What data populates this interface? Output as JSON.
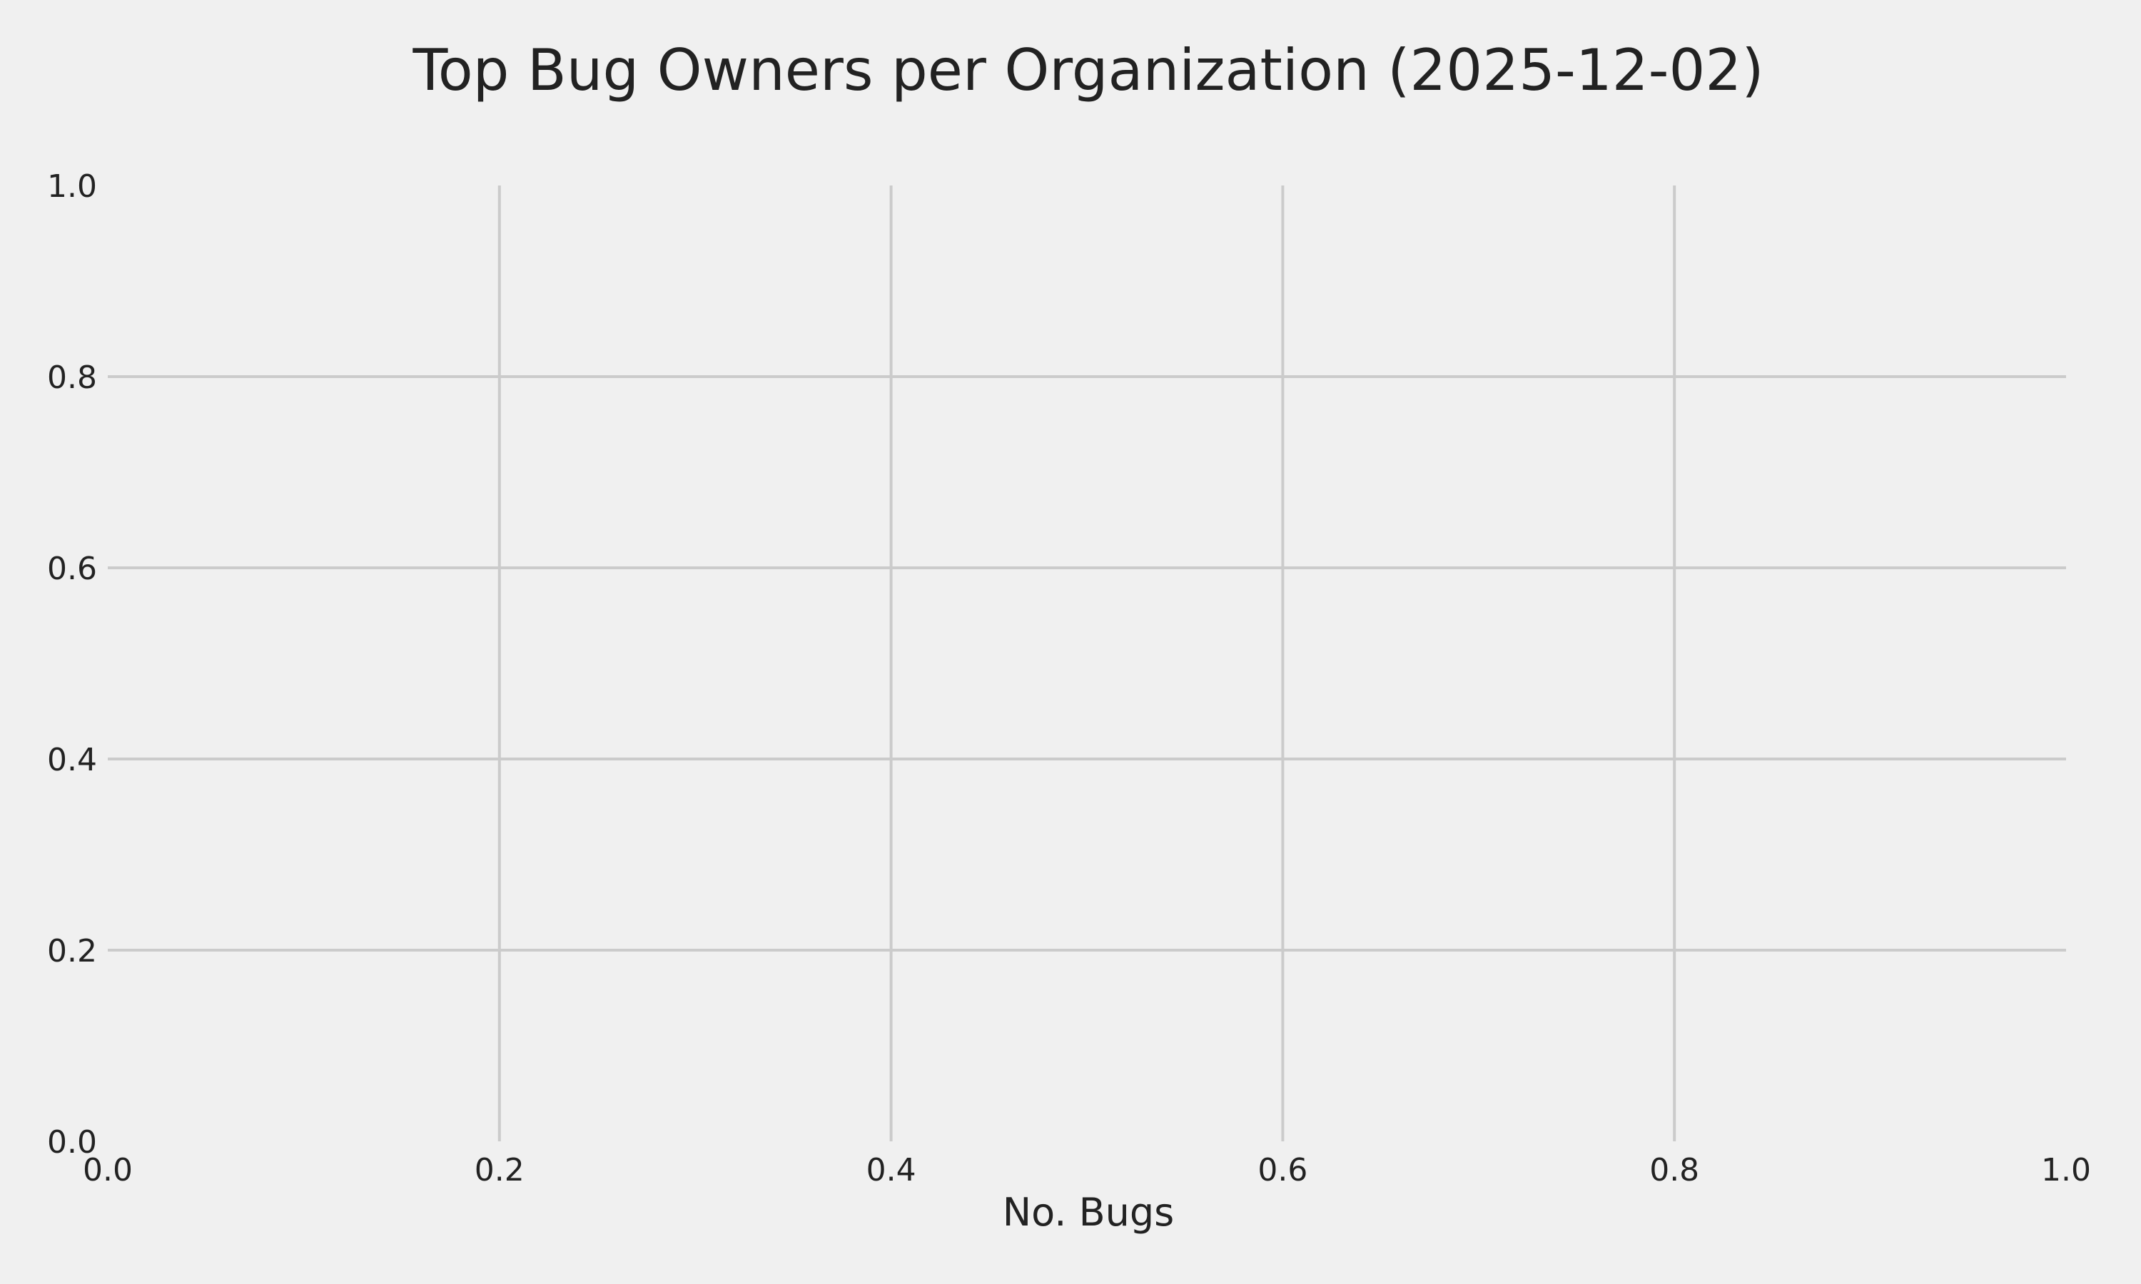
{
  "chart_data": {
    "type": "bar",
    "orientation": "horizontal",
    "title": "Top Bug Owners per Organization (2025-12-02)",
    "xlabel": "No. Bugs",
    "ylabel": "",
    "xlim": [
      0.0,
      1.0
    ],
    "ylim": [
      0.0,
      1.0
    ],
    "x_ticks": [
      "0.0",
      "0.2",
      "0.4",
      "0.6",
      "0.8",
      "1.0"
    ],
    "y_ticks": [
      "0.0",
      "0.2",
      "0.4",
      "0.6",
      "0.8",
      "1.0"
    ],
    "categories": [],
    "values": [],
    "grid": true,
    "colors": {
      "background": "#f0f0f0",
      "grid": "#cbcbcb",
      "text": "#222222"
    }
  }
}
